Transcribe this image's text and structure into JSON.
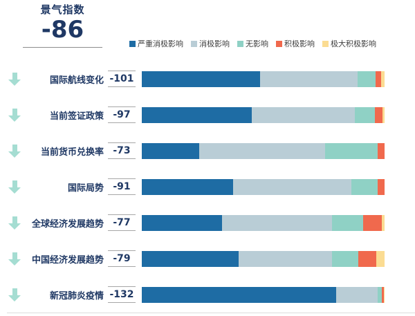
{
  "header": {
    "title": "景气指数",
    "value": "-86"
  },
  "legend": {
    "items": [
      {
        "label": "严重消极影响",
        "color": "#1e6ca4"
      },
      {
        "label": "消极影响",
        "color": "#b9cdd6"
      },
      {
        "label": "无影响",
        "color": "#8fd1c5"
      },
      {
        "label": "积极影响",
        "color": "#f0694d"
      },
      {
        "label": "极大积极影响",
        "color": "#fbdc92"
      }
    ]
  },
  "style_colors": {
    "navy_text": "#1f3864",
    "arrow_teal": "#a5ddd2",
    "rule_gray": "#a6a6a6"
  },
  "chart_data": {
    "type": "bar",
    "orientation": "horizontal",
    "stacked": true,
    "title": "景气指数",
    "index_value": -86,
    "legend_position": "top",
    "series_names": [
      "严重消极影响",
      "消极影响",
      "无影响",
      "积极影响",
      "极大积极影响"
    ],
    "categories": [
      "国际航线变化",
      "当前签证政策",
      "当前货币兑换率",
      "国际局势",
      "全球经济发展趋势",
      "中国经济发展趋势",
      "新冠肺炎疫情"
    ],
    "index_values": [
      -101,
      -97,
      -73,
      -91,
      -77,
      -79,
      -132
    ],
    "segment_unit": "percent of bar length (estimated)",
    "rows": [
      {
        "label": "国际航线变化",
        "value": "-101",
        "segments": [
          48.6,
          40.3,
          7.4,
          2.3,
          1.4
        ]
      },
      {
        "label": "当前签证政策",
        "value": "-97",
        "segments": [
          45.3,
          42.4,
          8.3,
          3.1,
          0.9
        ]
      },
      {
        "label": "当前货币兑换率",
        "value": "-73",
        "segments": [
          23.6,
          51.9,
          21.7,
          2.8,
          0
        ]
      },
      {
        "label": "国际局势",
        "value": "-91",
        "segments": [
          37.6,
          48.8,
          10.8,
          2.8,
          0
        ]
      },
      {
        "label": "全球经济发展趋势",
        "value": "-77",
        "segments": [
          33.1,
          45.3,
          12.8,
          7.7,
          1.1
        ]
      },
      {
        "label": "中国经济发展趋势",
        "value": "-79",
        "segments": [
          39.9,
          38.5,
          10.8,
          7.4,
          3.4
        ]
      },
      {
        "label": "新冠肺炎疫情",
        "value": "-132",
        "segments": [
          80.1,
          17.1,
          1.7,
          0.8,
          0.3
        ]
      }
    ]
  }
}
